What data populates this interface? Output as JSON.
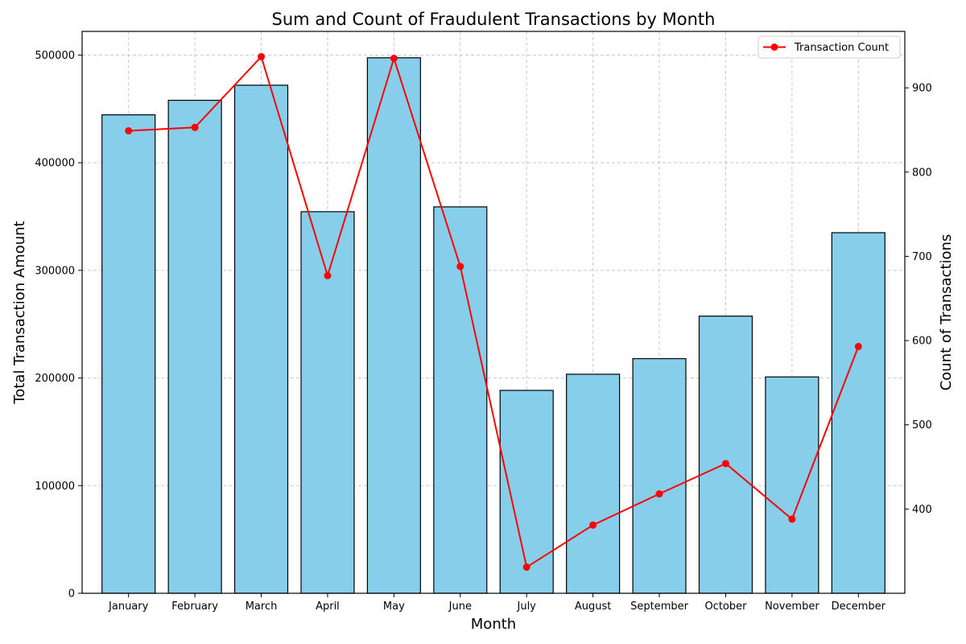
{
  "chart_data": {
    "type": "bar",
    "title": "Sum and Count of Fraudulent Transactions by Month",
    "xlabel": "Month",
    "ylabel": "Total Transaction Amount",
    "y2label": "Count of Transactions",
    "categories": [
      "January",
      "February",
      "March",
      "April",
      "May",
      "June",
      "July",
      "August",
      "September",
      "October",
      "November",
      "December"
    ],
    "series": [
      {
        "type": "bar",
        "axis": "left",
        "color": "#87CEEB",
        "edge_color": "#000000",
        "values": [
          444500,
          458000,
          472000,
          354500,
          497500,
          359000,
          188500,
          203500,
          218000,
          257500,
          201000,
          335000
        ]
      },
      {
        "name": "Transaction Count",
        "type": "line",
        "axis": "right",
        "color": "#FF0000",
        "marker": "circle",
        "values": [
          849,
          853,
          937,
          677,
          935,
          688,
          331,
          381,
          418,
          454,
          388,
          593
        ]
      }
    ],
    "ylim": [
      0,
      522000
    ],
    "y_ticks": [
      0,
      100000,
      200000,
      300000,
      400000,
      500000
    ],
    "y_tick_labels": [
      "0",
      "100000",
      "200000",
      "300000",
      "400000",
      "500000"
    ],
    "y2lim": [
      300,
      967
    ],
    "y2_ticks": [
      400,
      500,
      600,
      700,
      800,
      900
    ],
    "y2_tick_labels": [
      "400",
      "500",
      "600",
      "700",
      "800",
      "900"
    ],
    "grid": true,
    "grid_style": "dashed",
    "legend_position": "top-right"
  }
}
